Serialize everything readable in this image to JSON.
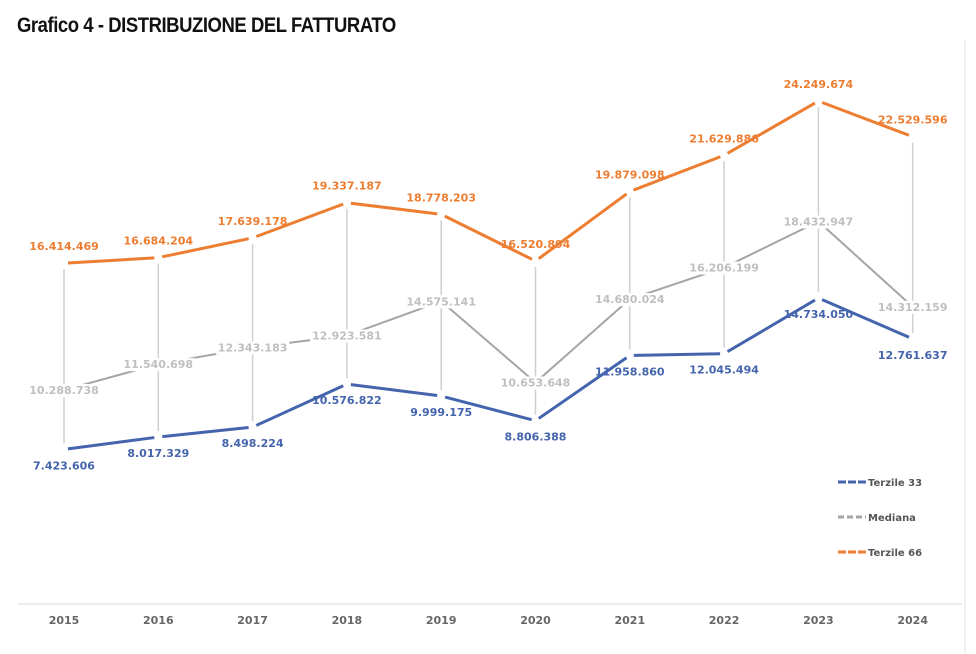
{
  "chart_data": {
    "type": "line",
    "title": "Grafico 4 - DISTRIBUZIONE DEL FATTURATO",
    "xlabel": "",
    "ylabel": "",
    "x": [
      "2015",
      "2016",
      "2017",
      "2018",
      "2019",
      "2020",
      "2021",
      "2022",
      "2023",
      "2024"
    ],
    "ylim": [
      0,
      27200000
    ],
    "grid": false,
    "legend_position": "right",
    "series": [
      {
        "name": "Terzile 33",
        "color": "#4464ad",
        "values": [
          7423606,
          8017329,
          8498224,
          10576822,
          9999175,
          8806388,
          11958860,
          12045494,
          14734050,
          12761637
        ],
        "labels": [
          "7.423.606",
          "8.017.329",
          "8.498.224",
          "10.576.822",
          "9.999.175",
          "8.806.388",
          "11.958.860",
          "12.045.494",
          "14.734.050",
          "12.761.637"
        ]
      },
      {
        "name": "Mediana",
        "color": "#a5a5a5",
        "values": [
          10288738,
          11540698,
          12343183,
          12923581,
          14575141,
          10653648,
          14680024,
          16206199,
          18432947,
          14312159
        ],
        "labels": [
          "10.288.738",
          "11.540.698",
          "12.343.183",
          "12.923.581",
          "14.575.141",
          "10.653.648",
          "14.680.024",
          "16.206.199",
          "18.432.947",
          "14.312.159"
        ]
      },
      {
        "name": "Terzile 66",
        "color": "#ed7d31",
        "values": [
          16414469,
          16684204,
          17639178,
          19337187,
          18778203,
          16520894,
          19879098,
          21629886,
          24249674,
          22529596
        ],
        "labels": [
          "16.414.469",
          "16.684.204",
          "17.639.178",
          "19.337.187",
          "18.778.203",
          "16.520.894",
          "19.879.098",
          "21.629.886",
          "24.249.674",
          "22.529.596"
        ]
      }
    ]
  }
}
